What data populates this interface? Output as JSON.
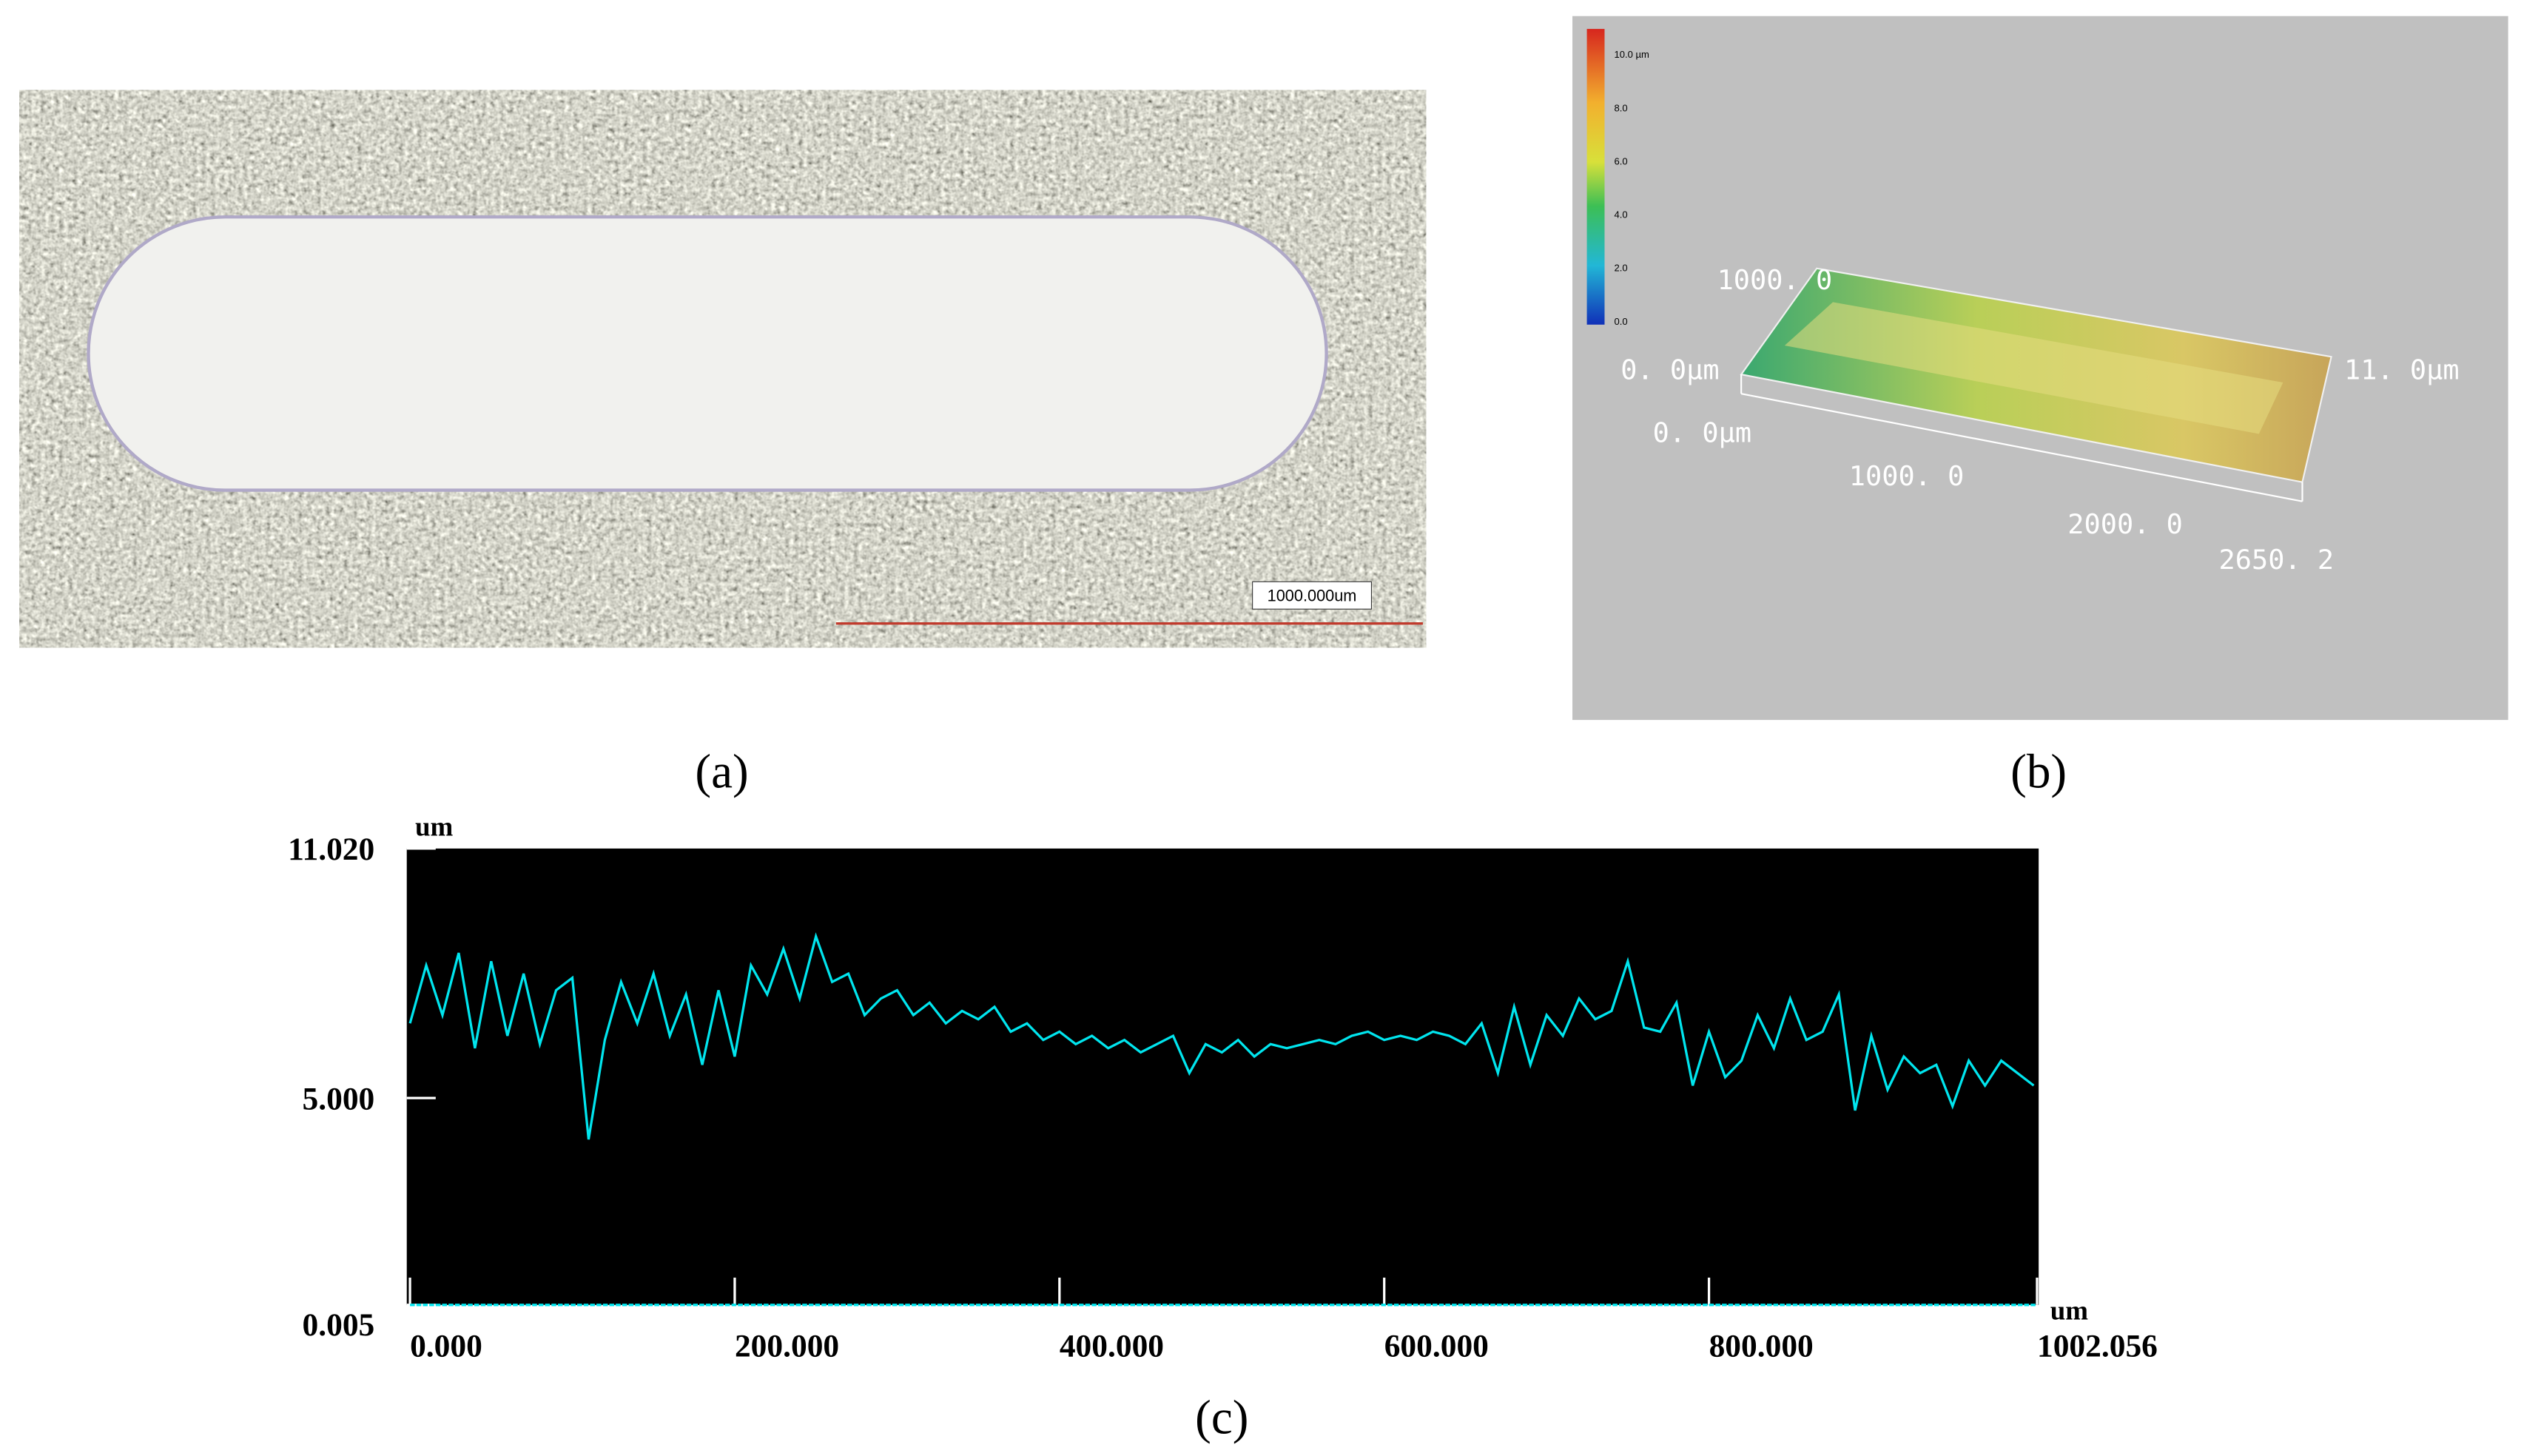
{
  "panels": {
    "a": {
      "label": "(a)",
      "scale_bar": "1000.000um"
    },
    "b": {
      "label": "(b)",
      "colorbar_labels": [
        "10.0 µm",
        "8.0",
        "6.0",
        "4.0",
        "2.0",
        "0.0"
      ],
      "axis_labels": [
        "1000. 0",
        "0. 0μm",
        "11. 0μm",
        "0. 0μm",
        "1000. 0",
        "2000. 0",
        "2650. 2"
      ]
    },
    "c": {
      "label": "(c)"
    }
  },
  "chart_data": {
    "type": "line",
    "y_unit": "um",
    "x_unit": "um",
    "x": [
      0,
      10,
      20,
      30,
      40,
      50,
      60,
      70,
      80,
      90,
      100,
      110,
      120,
      130,
      140,
      150,
      160,
      170,
      180,
      190,
      200,
      210,
      220,
      230,
      240,
      250,
      260,
      270,
      280,
      290,
      300,
      310,
      320,
      330,
      340,
      350,
      360,
      370,
      380,
      390,
      400,
      410,
      420,
      430,
      440,
      450,
      460,
      470,
      480,
      490,
      500,
      510,
      520,
      530,
      540,
      550,
      560,
      570,
      580,
      590,
      600,
      610,
      620,
      630,
      640,
      650,
      660,
      670,
      680,
      690,
      700,
      710,
      720,
      730,
      740,
      750,
      760,
      770,
      780,
      790,
      800,
      810,
      820,
      830,
      840,
      850,
      860,
      870,
      880,
      890,
      900,
      910,
      920,
      930,
      940,
      950,
      960,
      970,
      980,
      990,
      1000
    ],
    "series": [
      {
        "color": "#00e5ee",
        "values": [
          6.8,
          8.2,
          7.0,
          8.5,
          6.2,
          8.3,
          6.5,
          8.0,
          6.3,
          7.6,
          7.9,
          4.0,
          6.4,
          7.8,
          6.8,
          8.0,
          6.5,
          7.5,
          5.8,
          7.6,
          6.0,
          8.2,
          7.5,
          8.6,
          7.4,
          8.9,
          7.8,
          8.0,
          7.0,
          7.4,
          7.6,
          7.0,
          7.3,
          6.8,
          7.1,
          6.9,
          7.2,
          6.6,
          6.8,
          6.4,
          6.6,
          6.3,
          6.5,
          6.2,
          6.4,
          6.1,
          6.3,
          6.5,
          5.6,
          6.3,
          6.1,
          6.4,
          6.0,
          6.3,
          6.2,
          6.3,
          6.4,
          6.3,
          6.5,
          6.6,
          6.4,
          6.5,
          6.4,
          6.6,
          6.5,
          6.3,
          6.8,
          5.6,
          7.2,
          5.8,
          7.0,
          6.5,
          7.4,
          6.9,
          7.1,
          8.3,
          6.7,
          6.6,
          7.3,
          5.3,
          6.6,
          5.5,
          5.9,
          7.0,
          6.2,
          7.4,
          6.4,
          6.6,
          7.5,
          4.7,
          6.5,
          5.2,
          6.0,
          5.6,
          5.8,
          4.8,
          5.9,
          5.3,
          5.9,
          5.6,
          5.3
        ]
      }
    ],
    "xlim": [
      0,
      1002.056
    ],
    "xticks": [
      {
        "value": 0,
        "label": "0.000"
      },
      {
        "value": 200,
        "label": "200.000"
      },
      {
        "value": 400,
        "label": "400.000"
      },
      {
        "value": 600,
        "label": "600.000"
      },
      {
        "value": 800,
        "label": "800.000"
      },
      1002.056
    ],
    "ylim": [
      0.005,
      11.02
    ],
    "yticks": [
      0.005,
      {
        "value": 5,
        "label": "5.000"
      },
      {
        "value": 11.02,
        "label": "11.020"
      }
    ],
    "grid": false
  }
}
